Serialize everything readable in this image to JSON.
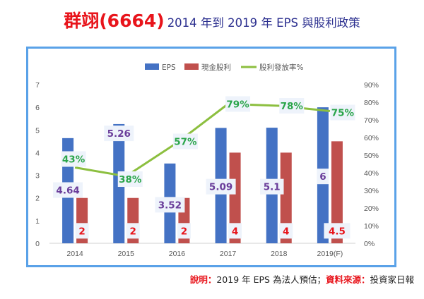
{
  "title": {
    "company": "群翊(6664)",
    "subtitle": "2014 年到 2019 年 EPS 與股利政策"
  },
  "colors": {
    "eps": "#4472c4",
    "dividend": "#c0504d",
    "payout": "#8cbf3f",
    "eps_label": "#6a3d9a",
    "dividend_label": "#e8141b",
    "payout_label": "#2aa54a",
    "frame": "#5aa2e8"
  },
  "chart_data": {
    "type": "bar",
    "categories": [
      "2014",
      "2015",
      "2016",
      "2017",
      "2018",
      "2019(F)"
    ],
    "series": [
      {
        "name": "EPS",
        "type": "bar",
        "axis": "left",
        "values": [
          4.64,
          5.26,
          3.52,
          5.09,
          5.1,
          6
        ],
        "labels": [
          "4.64",
          "5.26",
          "3.52",
          "5.09",
          "5.1",
          "6"
        ]
      },
      {
        "name": "現金股利",
        "type": "bar",
        "axis": "left",
        "values": [
          2,
          2,
          2,
          4,
          4,
          4.5
        ],
        "labels": [
          "2",
          "2",
          "2",
          "4",
          "4",
          "4.5"
        ]
      },
      {
        "name": "股利發放率%",
        "type": "line",
        "axis": "right",
        "values": [
          43,
          38,
          57,
          79,
          78,
          75
        ],
        "labels": [
          "43%",
          "38%",
          "57%",
          "79%",
          "78%",
          "75%"
        ]
      }
    ],
    "y_left": {
      "min": 0,
      "max": 7,
      "ticks": [
        "0",
        "1",
        "2",
        "3",
        "4",
        "5",
        "6",
        "7"
      ]
    },
    "y_right": {
      "min": 0,
      "max": 90,
      "ticks": [
        "0%",
        "10%",
        "20%",
        "30%",
        "40%",
        "50%",
        "60%",
        "70%",
        "80%",
        "90%"
      ]
    },
    "legend_position": "top",
    "grid": false
  },
  "note": {
    "label1": "說明：",
    "text1": "2019 年 EPS 為法人預估；",
    "label2": "資料來源：",
    "text2": "投資家日報"
  }
}
